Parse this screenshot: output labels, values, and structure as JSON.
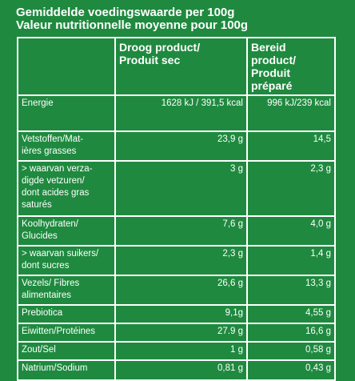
{
  "header": {
    "title_nl": "Gemiddelde voedingswaarde per 100g",
    "title_fr": "Valeur nutritionnelle moyenne pour 100g"
  },
  "columns": {
    "dry": [
      "Droog product/",
      "Produit sec"
    ],
    "prepared": [
      "Bereid product/",
      "Produit préparé"
    ]
  },
  "rows": [
    {
      "label": [
        "Energie"
      ],
      "dry": "1628 kJ / 391,5 kcal",
      "prepared": "996 kJ/239 kcal"
    },
    {
      "label": [
        "Vetstoffen/Mat-",
        "ières grasses"
      ],
      "dry": "23,9 g",
      "prepared": "14,5"
    },
    {
      "label": [
        "> waarvan verza-",
        "digde vetzuren/",
        "dont acides gras",
        "saturés"
      ],
      "dry": "3 g",
      "prepared": "2,3 g"
    },
    {
      "label": [
        "Koolhydraten/",
        "Glucides"
      ],
      "dry": "7,6 g",
      "prepared": "4,0 g"
    },
    {
      "label": [
        "> waarvan suikers/",
        "dont sucres"
      ],
      "dry": "2,3 g",
      "prepared": "1,4 g"
    },
    {
      "label": [
        "Vezels/ Fibres",
        "alimentaires"
      ],
      "dry": "26,6 g",
      "prepared": "13,3 g"
    },
    {
      "label": [
        "Prebiotica"
      ],
      "dry": "9,1g",
      "prepared": "4,55 g"
    },
    {
      "label": [
        "Eiwitten/Protéines"
      ],
      "dry": "27.9 g",
      "prepared": "16,6 g"
    },
    {
      "label": [
        "Zout/Sel"
      ],
      "dry": "1 g",
      "prepared": "0,58 g"
    },
    {
      "label": [
        "Natrium/Sodium"
      ],
      "dry": "0,81 g",
      "prepared": "0,43 g"
    }
  ]
}
